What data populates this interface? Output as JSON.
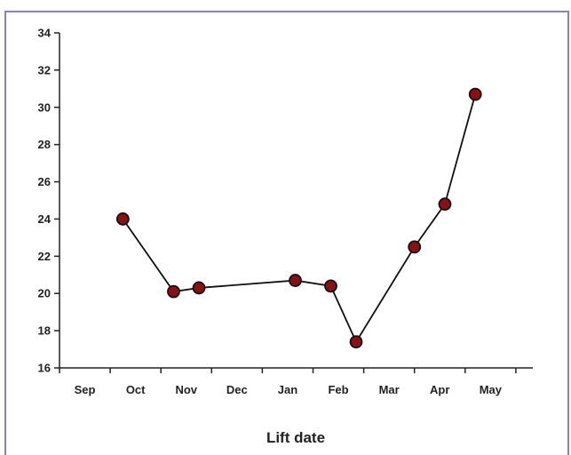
{
  "chart_data": {
    "type": "line",
    "title": "",
    "xlabel": "Lift date",
    "ylabel": "",
    "x_ticks": [
      "Sep",
      "Oct",
      "Nov",
      "Dec",
      "Jan",
      "Feb",
      "Mar",
      "Apr",
      "May"
    ],
    "y_ticks": [
      16,
      18,
      20,
      22,
      24,
      26,
      28,
      30,
      32,
      34
    ],
    "ylim": [
      16,
      34
    ],
    "grid": false,
    "legend": "none",
    "series": [
      {
        "x": [
          "Oct",
          "Nov",
          "Nov/Dec",
          "Jan",
          "Feb",
          "Feb/Mar",
          "Apr",
          "Apr/May",
          "May"
        ],
        "x_month_pos": [
          1.25,
          2.25,
          2.75,
          4.65,
          5.35,
          5.85,
          7.0,
          7.6,
          8.2
        ],
        "values": [
          24.0,
          20.1,
          20.3,
          20.7,
          20.4,
          17.4,
          22.5,
          24.8,
          30.7
        ]
      }
    ],
    "colors": {
      "marker_fill": "#8b0f14",
      "marker_stroke": "#111111",
      "line": "#111111",
      "frame": "#8a7fc4"
    }
  }
}
